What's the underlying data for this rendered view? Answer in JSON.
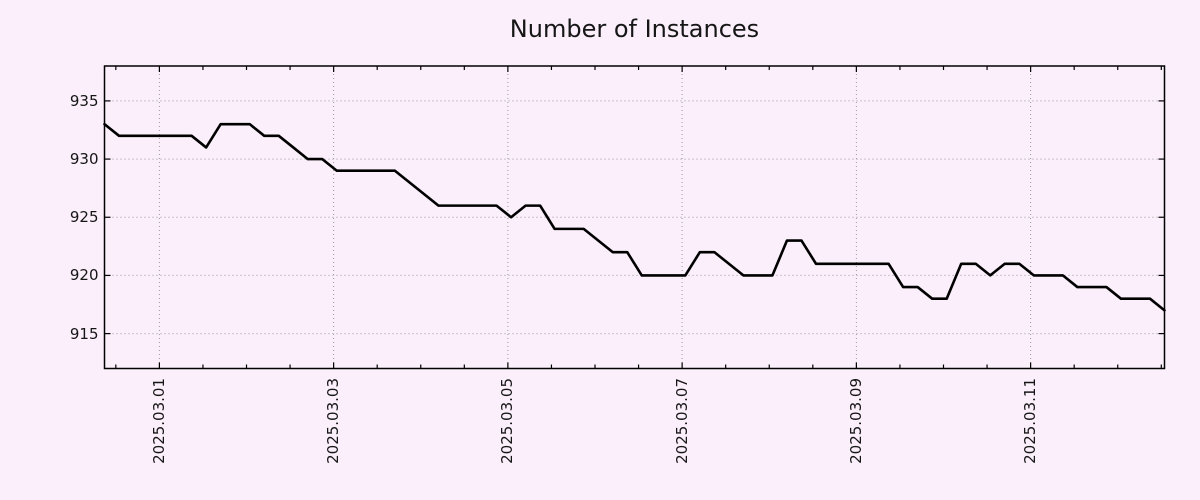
{
  "page": {
    "background": "#faeffa"
  },
  "chart": {
    "title": "Number of Instances",
    "colors": {
      "line": "#000000",
      "grid": "#999999",
      "border": "#000000",
      "text": "#161616",
      "background": "#faeffa"
    }
  },
  "chart_data": {
    "type": "line",
    "title": "Number of Instances",
    "legend": "none",
    "grid": "dotted",
    "x_axis": {
      "unit": "date",
      "domain_days": [
        -0.63,
        11.5367
      ],
      "tick_day_offsets": [
        0,
        2,
        4,
        6,
        8,
        10
      ],
      "tick_labels": [
        "2025.03.01",
        "2025.03.03",
        "2025.03.05",
        "2025.03.07",
        "2025.03.09",
        "2025.03.11"
      ],
      "minor_tick_step_days": 0.5
    },
    "y_axis": {
      "ylim": [
        912,
        938
      ],
      "ticks": [
        915,
        920,
        925,
        930,
        935
      ]
    },
    "series": [
      {
        "name": "Number of Instances",
        "color": "#000000",
        "start_day_offset": -0.63,
        "step_days": 0.1666667,
        "values": [
          933,
          932,
          932,
          932,
          932,
          932,
          932,
          931,
          933,
          933,
          933,
          932,
          932,
          931,
          930,
          930,
          929,
          929,
          929,
          929,
          929,
          928,
          927,
          926,
          926,
          926,
          926,
          926,
          925,
          926,
          926,
          924,
          924,
          924,
          923,
          922,
          922,
          920,
          920,
          920,
          920,
          922,
          922,
          921,
          920,
          920,
          920,
          923,
          923,
          921,
          921,
          921,
          921,
          921,
          921,
          919,
          919,
          918,
          918,
          921,
          921,
          920,
          921,
          921,
          920,
          920,
          920,
          919,
          919,
          919,
          918,
          918,
          918,
          917
        ]
      }
    ]
  }
}
